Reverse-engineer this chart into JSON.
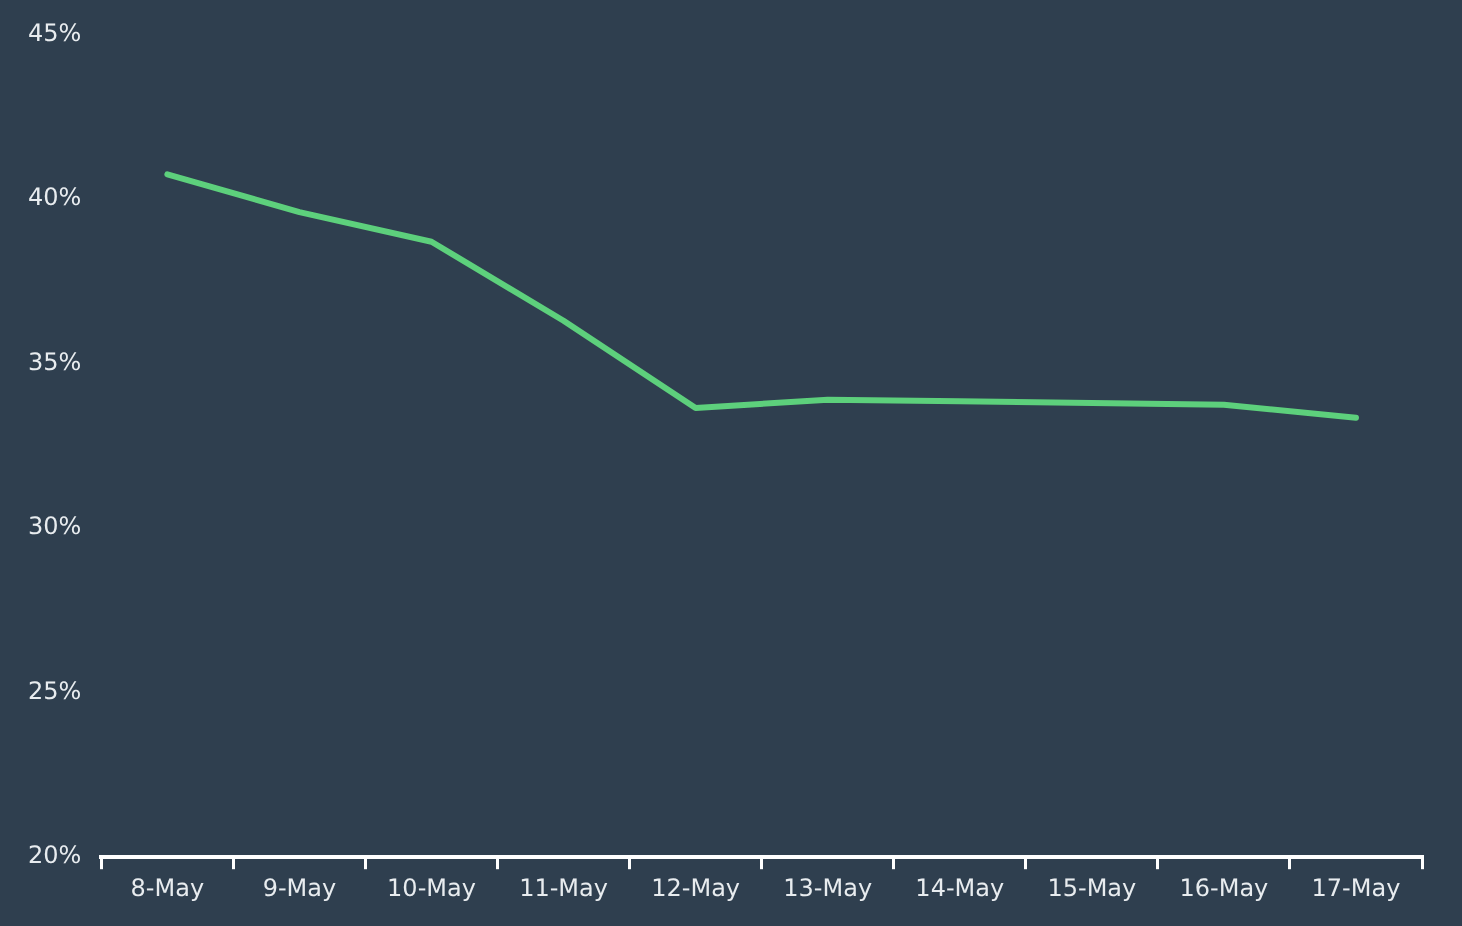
{
  "chart_data": {
    "type": "line",
    "categories": [
      "8-May",
      "9-May",
      "10-May",
      "11-May",
      "12-May",
      "13-May",
      "14-May",
      "15-May",
      "16-May",
      "17-May"
    ],
    "series": [
      {
        "color": "#5dd07c",
        "values": [
          40.75,
          39.6,
          38.7,
          36.3,
          33.65,
          33.9,
          33.85,
          33.8,
          33.75,
          33.35
        ]
      }
    ],
    "ylim": [
      20,
      45
    ],
    "yticks": [
      {
        "value": 20,
        "label": "20%"
      },
      {
        "value": 25,
        "label": "25%"
      },
      {
        "value": 30,
        "label": "30%"
      },
      {
        "value": 35,
        "label": "35%"
      },
      {
        "value": 40,
        "label": "40%"
      },
      {
        "value": 45,
        "label": "45%"
      }
    ],
    "grid": false,
    "legend": false,
    "marker": "none",
    "line_style": "solid"
  }
}
